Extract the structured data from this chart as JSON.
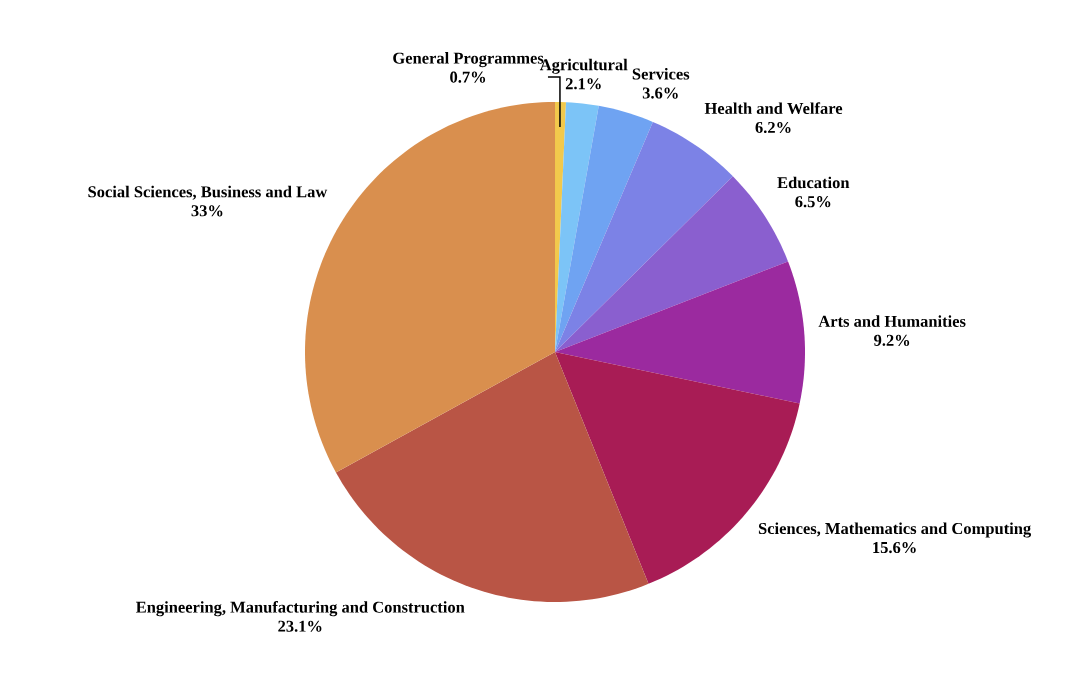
{
  "chart_data": {
    "type": "pie",
    "categories": [
      "General Programmes",
      "Agricultural",
      "Services",
      "Health and Welfare",
      "Education",
      "Arts and Humanities",
      "Sciences, Mathematics and Computing",
      "Engineering, Manufacturing and Construction",
      "Social Sciences, Business and Law"
    ],
    "values": [
      0.7,
      2.1,
      3.6,
      6.2,
      6.5,
      9.2,
      15.6,
      23.1,
      33
    ],
    "value_labels": [
      "0.7%",
      "2.1%",
      "3.6%",
      "6.2%",
      "6.5%",
      "9.2%",
      "15.6%",
      "23.1%",
      "33%"
    ],
    "colors": [
      "#f2c94c",
      "#7cc4f7",
      "#6fa3f2",
      "#7c82e6",
      "#8a5fcf",
      "#9b2a9f",
      "#a81c55",
      "#b95545",
      "#d98f4e"
    ]
  }
}
